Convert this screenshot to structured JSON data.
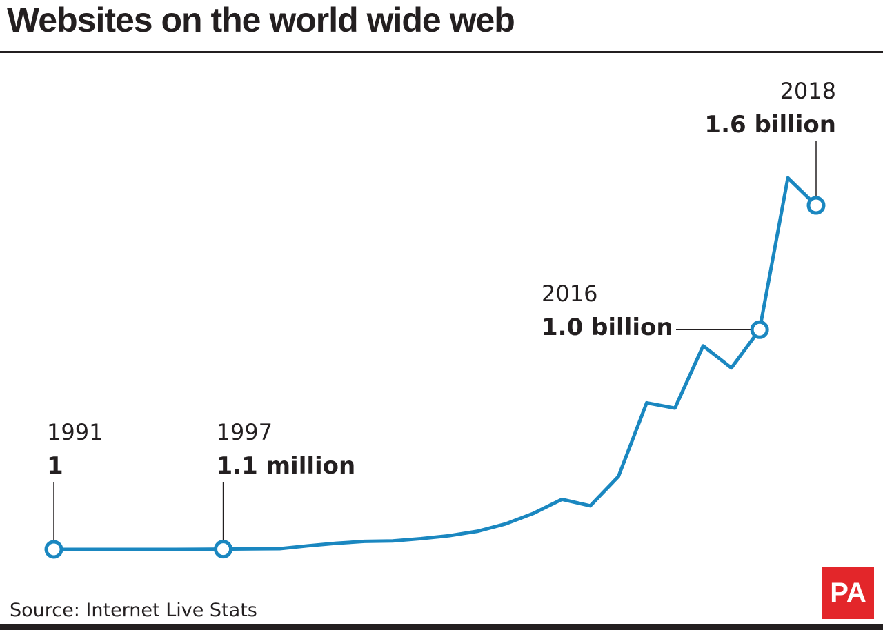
{
  "chart_data": {
    "type": "line",
    "title": "Websites on the world wide web",
    "source": "Source: Internet Live Stats",
    "xlabel": "",
    "ylabel": "",
    "grid": false,
    "legend": "none",
    "line_color": "#1a87c0",
    "x": [
      1991,
      1992,
      1993,
      1994,
      1995,
      1996,
      1997,
      1998,
      1999,
      2000,
      2001,
      2002,
      2003,
      2004,
      2005,
      2006,
      2007,
      2008,
      2009,
      2010,
      2011,
      2012,
      2013,
      2014,
      2015,
      2016,
      2017,
      2018
    ],
    "values_billions": [
      0,
      0,
      0,
      0,
      0,
      0.0003,
      0.0011,
      0.0024,
      0.0032,
      0.017,
      0.029,
      0.038,
      0.04,
      0.051,
      0.065,
      0.086,
      0.121,
      0.172,
      0.238,
      0.207,
      0.347,
      0.697,
      0.672,
      0.968,
      0.863,
      1.045,
      1.767,
      1.636
    ],
    "ylim": [
      0,
      1.8
    ],
    "annotations": [
      {
        "year": 1991,
        "year_label": "1991",
        "value_label": "1"
      },
      {
        "year": 1997,
        "year_label": "1997",
        "value_label": "1.1 million"
      },
      {
        "year": 2016,
        "year_label": "2016",
        "value_label": "1.0 billion"
      },
      {
        "year": 2018,
        "year_label": "2018",
        "value_label": "1.6 billion"
      }
    ]
  },
  "logo": {
    "text": "PA",
    "color": "#e3262a"
  }
}
